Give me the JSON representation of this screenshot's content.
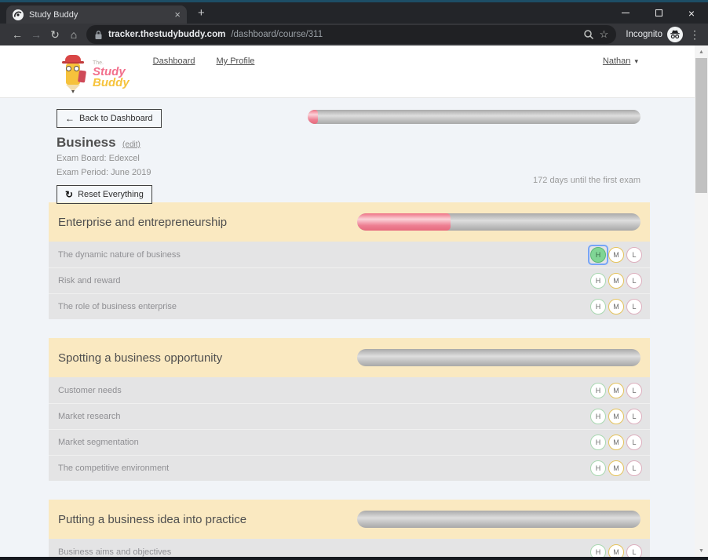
{
  "browser": {
    "tab_title": "Study Buddy",
    "url": {
      "host": "tracker.thestudybuddy.com",
      "path": "/dashboard/course/311"
    },
    "incognito_label": "Incognito"
  },
  "icons": {
    "back": "←",
    "forward": "→",
    "reload": "↻",
    "home": "⌂",
    "star": "☆",
    "menu": "⋮",
    "tab_close": "×",
    "new_tab": "+",
    "window_close": "×",
    "caret_down": "▾",
    "back_arrow": "←",
    "reset": "↻",
    "scroll_up": "▲",
    "scroll_down": "▼"
  },
  "header": {
    "logo": {
      "line1": "The.",
      "line2": "Study",
      "line3": "Buddy"
    },
    "nav": [
      "Dashboard",
      "My Profile"
    ],
    "user": {
      "name": "Nathan"
    }
  },
  "course": {
    "back_button": "Back to Dashboard",
    "title": "Business",
    "edit_link": "(edit)",
    "exam_board": "Exam Board: Edexcel",
    "exam_period": "Exam Period: June 2019",
    "countdown": "172 days until the first exam",
    "reset_button": "Reset Everything",
    "overall_progress_percent": 3
  },
  "rating_labels": [
    "H",
    "M",
    "L"
  ],
  "sections": [
    {
      "title": "Enterprise and entrepreneurship",
      "progress_percent": 33,
      "topics": [
        {
          "name": "The dynamic nature of business",
          "selected": "H"
        },
        {
          "name": "Risk and reward",
          "selected": null
        },
        {
          "name": "The role of business enterprise",
          "selected": null
        }
      ]
    },
    {
      "title": "Spotting a business opportunity",
      "progress_percent": 0,
      "topics": [
        {
          "name": "Customer needs",
          "selected": null
        },
        {
          "name": "Market research",
          "selected": null
        },
        {
          "name": "Market segmentation",
          "selected": null
        },
        {
          "name": "The competitive environment",
          "selected": null
        }
      ]
    },
    {
      "title": "Putting a business idea into practice",
      "progress_percent": 0,
      "topics": [
        {
          "name": "Business aims and objectives",
          "selected": null
        }
      ]
    }
  ],
  "colors": {
    "accent_pink": "#ee7285",
    "section_header_bg": "#fae9c1",
    "row_bg": "#e4e4e5",
    "selected_green": "#80d595",
    "rating_h_border": "#a9d8b1",
    "rating_m_border": "#e5c35b",
    "rating_l_border": "#ddafbe",
    "focus_ring_blue": "#77a5f7",
    "page_bg": "#f1f4f8"
  }
}
